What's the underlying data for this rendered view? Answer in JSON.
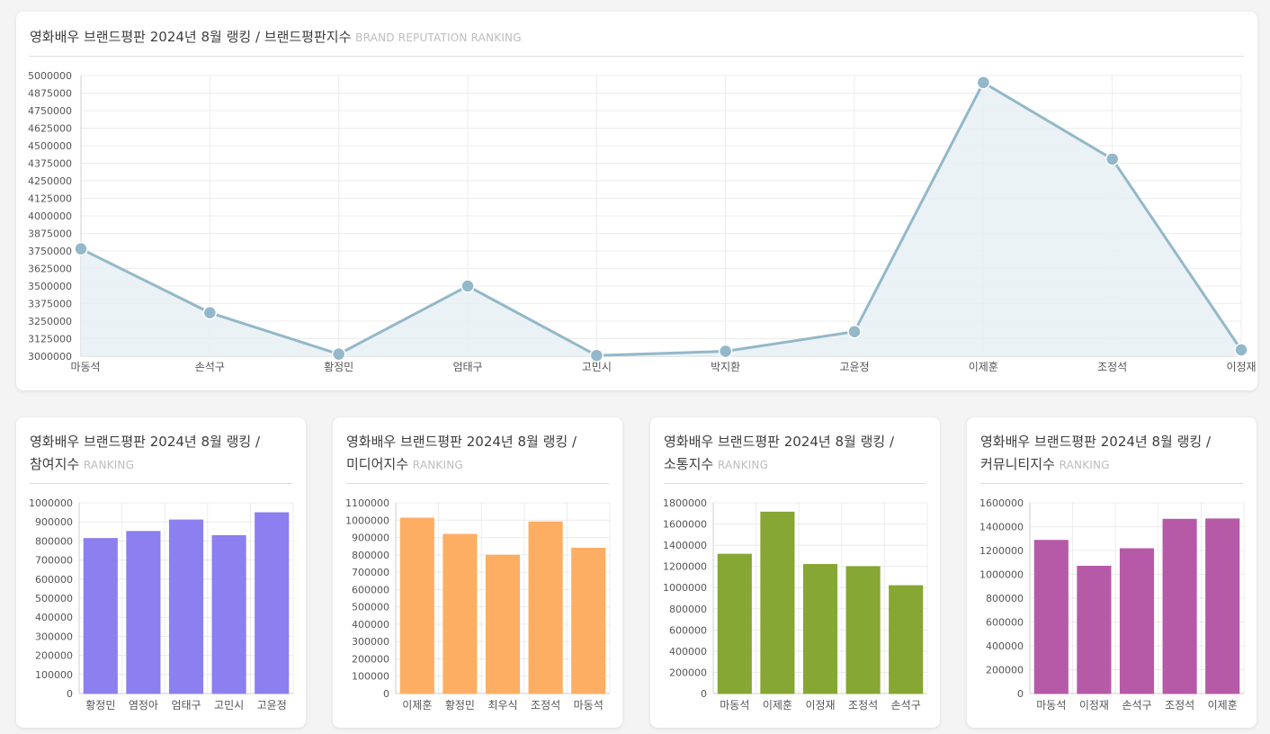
{
  "main": {
    "title": "영화배우 브랜드평판 2024년 8월 랭킹 / 브랜드평판지수",
    "subtitle": "BRAND REPUTATION RANKING"
  },
  "cards": [
    {
      "title_line1": "영화배우 브랜드평판 2024년 8월 랭킹 /",
      "title_line2": "참여지수",
      "subtitle": "RANKING"
    },
    {
      "title_line1": "영화배우 브랜드평판 2024년 8월 랭킹 /",
      "title_line2": "미디어지수",
      "subtitle": "RANKING"
    },
    {
      "title_line1": "영화배우 브랜드평판 2024년 8월 랭킹 /",
      "title_line2": "소통지수",
      "subtitle": "RANKING"
    },
    {
      "title_line1": "영화배우 브랜드평판 2024년 8월 랭킹 /",
      "title_line2": "커뮤니티지수",
      "subtitle": "RANKING"
    }
  ],
  "chart_data": [
    {
      "type": "line",
      "categories": [
        "마동석",
        "손석구",
        "황정민",
        "엄태구",
        "고민시",
        "박지환",
        "고윤정",
        "이제훈",
        "조정석",
        "이정재"
      ],
      "values": [
        3765000,
        3310000,
        3015000,
        3500000,
        3005000,
        3035000,
        3175000,
        4950000,
        4405000,
        3045000
      ],
      "ylim": [
        3000000,
        5000000
      ],
      "ytick_step": 125000,
      "grid": true,
      "line_color": "#93b8c9",
      "fill_color": "#e8f0f4"
    },
    {
      "type": "bar",
      "categories": [
        "황정민",
        "염정아",
        "엄태구",
        "고민시",
        "고윤정"
      ],
      "values": [
        813000,
        850000,
        910000,
        828000,
        948000
      ],
      "ylim": [
        0,
        1000000
      ],
      "ytick_step": 100000,
      "grid": true,
      "color": "#8c7ff0"
    },
    {
      "type": "bar",
      "categories": [
        "이제훈",
        "황정민",
        "최우식",
        "조정석",
        "마동석"
      ],
      "values": [
        1012000,
        918000,
        798000,
        990000,
        838000
      ],
      "ylim": [
        0,
        1100000
      ],
      "ytick_step": 100000,
      "grid": true,
      "color": "#feae63"
    },
    {
      "type": "bar",
      "categories": [
        "마동석",
        "이제훈",
        "이정재",
        "조정석",
        "손석구"
      ],
      "values": [
        1315000,
        1712000,
        1218000,
        1198000,
        1018000
      ],
      "ylim": [
        0,
        1800000
      ],
      "ytick_step": 200000,
      "grid": true,
      "color": "#86a733"
    },
    {
      "type": "bar",
      "categories": [
        "마동석",
        "이정재",
        "손석구",
        "조정석",
        "이제훈"
      ],
      "values": [
        1285000,
        1068000,
        1215000,
        1462000,
        1465000
      ],
      "ylim": [
        0,
        1600000
      ],
      "ytick_step": 200000,
      "grid": true,
      "color": "#b65aa8"
    }
  ]
}
